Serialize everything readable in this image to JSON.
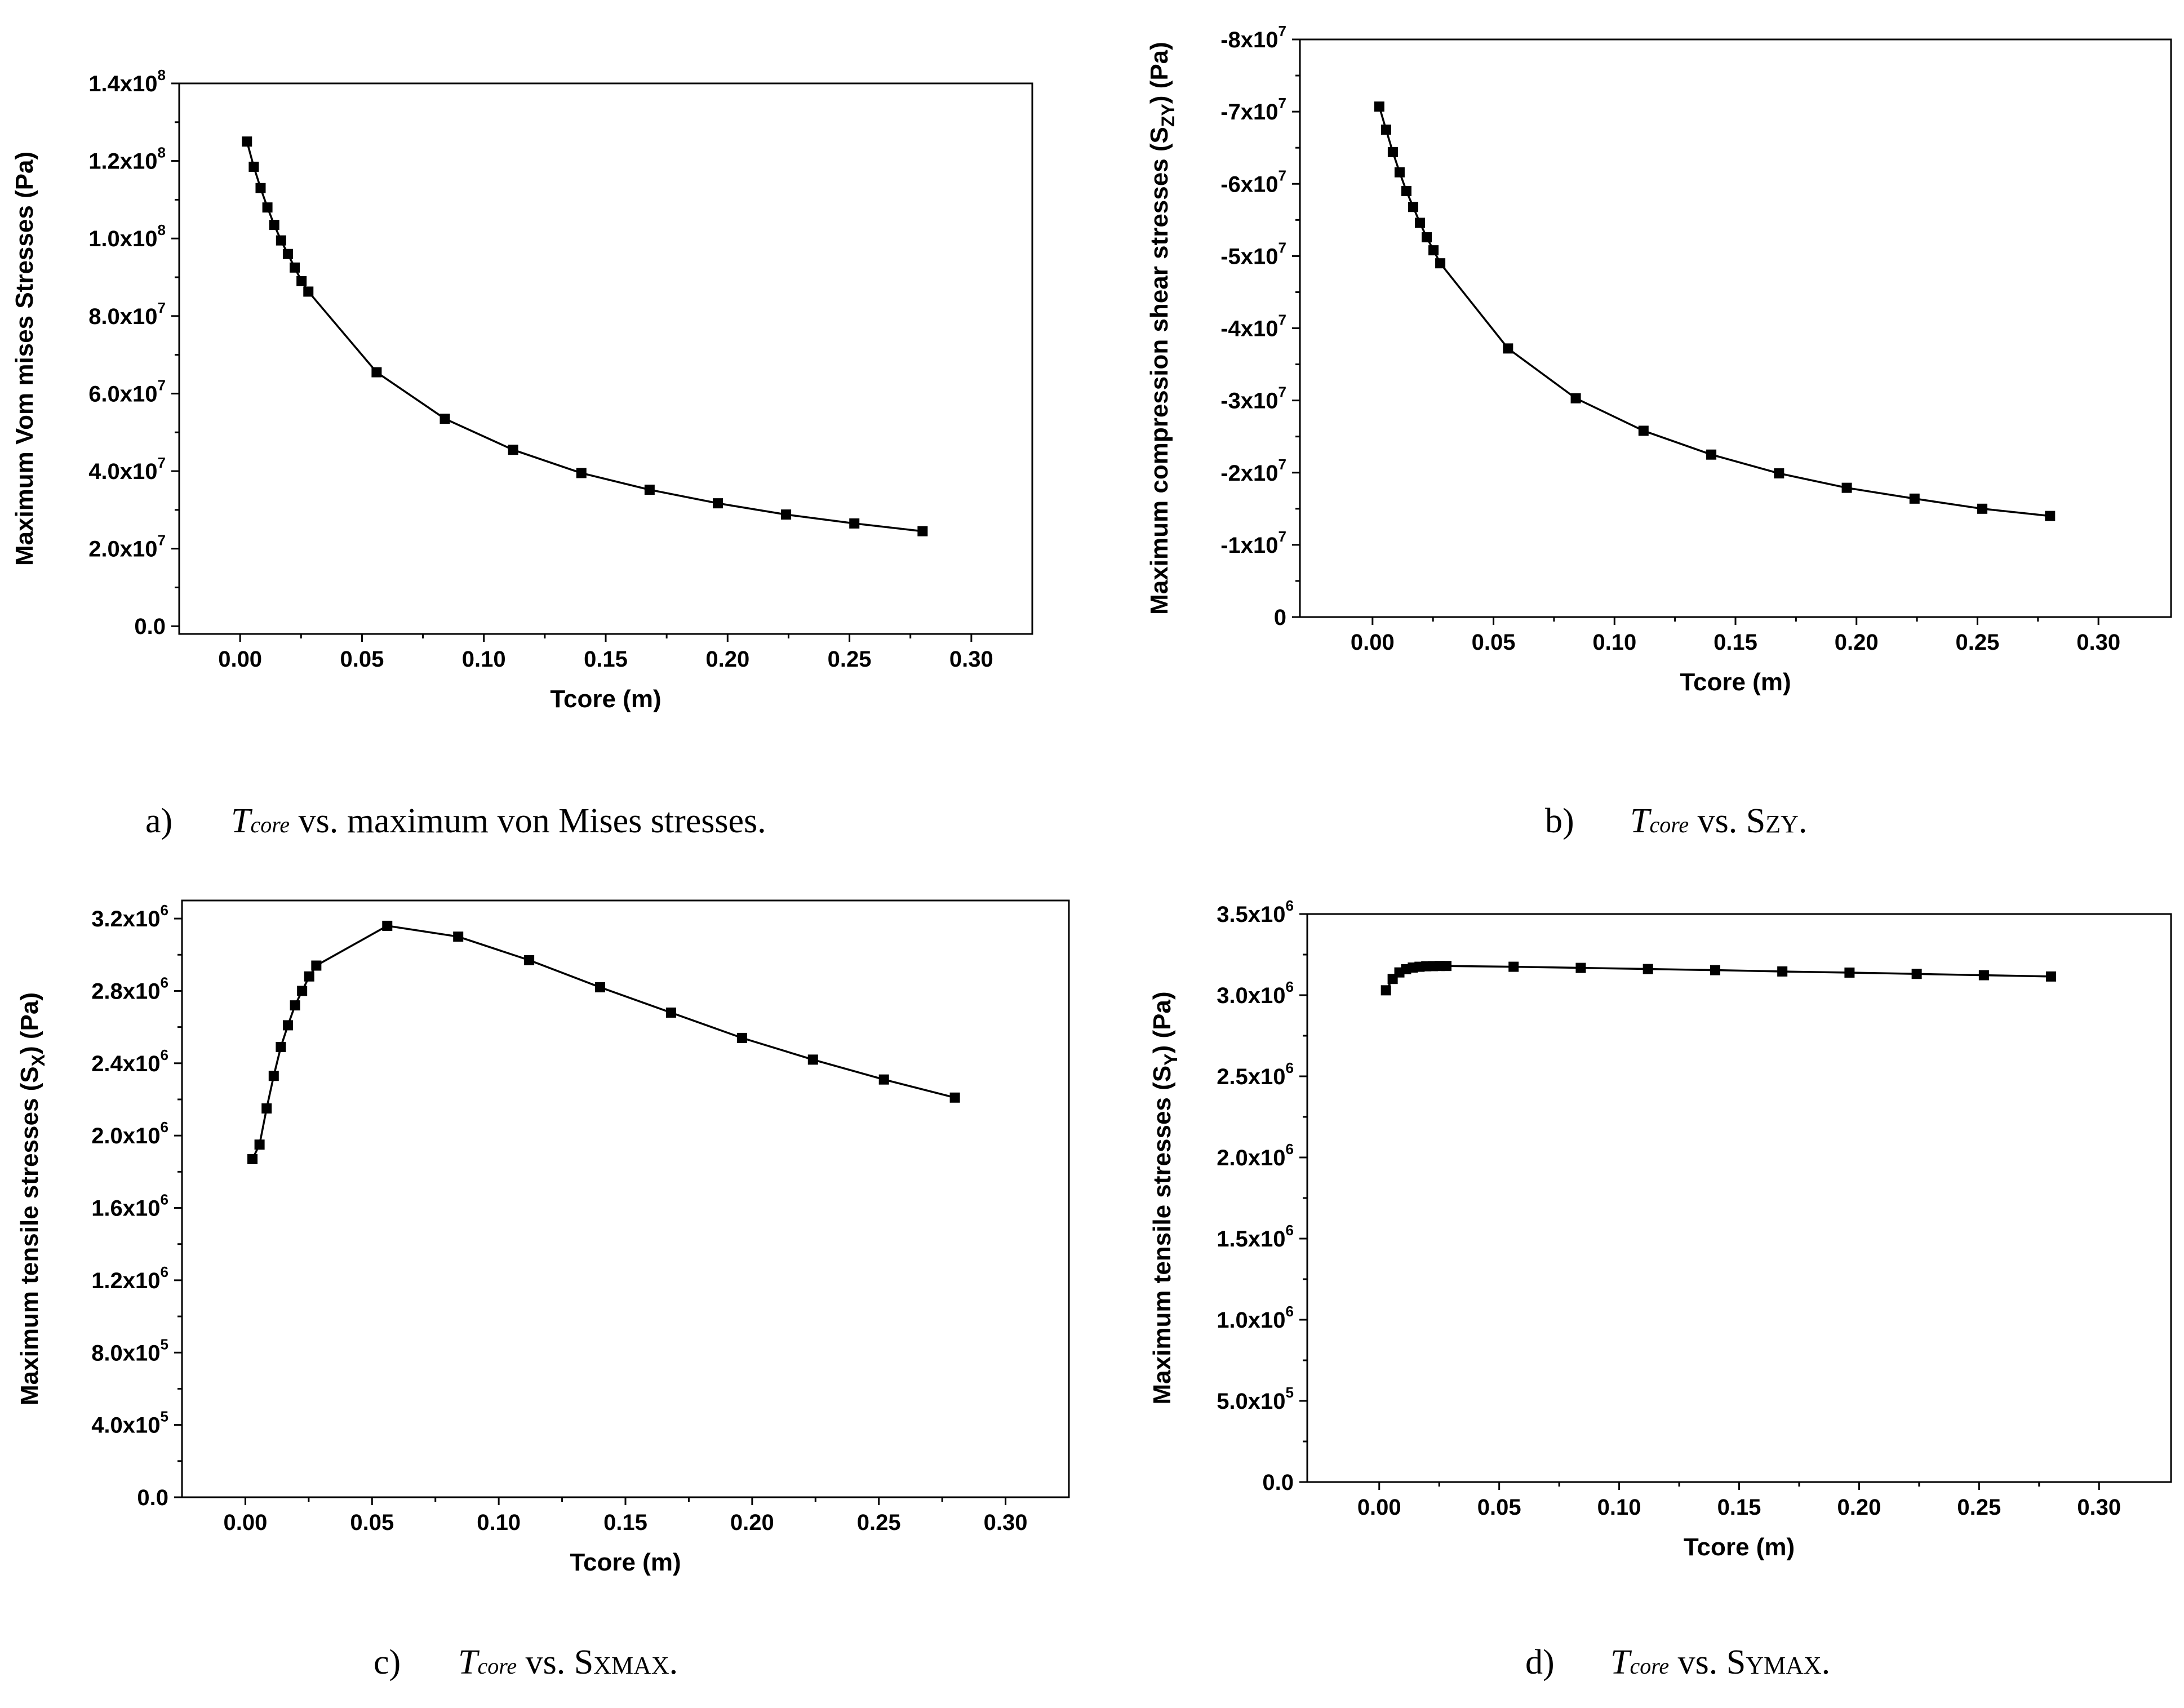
{
  "chart_data": [
    {
      "id": "a",
      "type": "line",
      "xlabel": "Tcore (m)",
      "ylabel": "Maximum Vom mises Stresses (Pa)",
      "xlim": [
        -0.025,
        0.325
      ],
      "ylim": [
        -2000000.0,
        140000000.0
      ],
      "xticks": [
        0.0,
        0.05,
        0.1,
        0.15,
        0.2,
        0.25,
        0.3
      ],
      "xtick_labels": [
        "0.00",
        "0.05",
        "0.10",
        "0.15",
        "0.20",
        "0.25",
        "0.30"
      ],
      "yticks": [
        0,
        20000000.0,
        40000000.0,
        60000000.0,
        80000000.0,
        100000000.0,
        120000000.0,
        140000000.0
      ],
      "ytick_labels": [
        {
          "m": "0.0",
          "e": ""
        },
        {
          "m": "2.0x10",
          "e": "7"
        },
        {
          "m": "4.0x10",
          "e": "7"
        },
        {
          "m": "6.0x10",
          "e": "7"
        },
        {
          "m": "8.0x10",
          "e": "7"
        },
        {
          "m": "1.0x10",
          "e": "8"
        },
        {
          "m": "1.2x10",
          "e": "8"
        },
        {
          "m": "1.4x10",
          "e": "8"
        }
      ],
      "x": [
        0.0028,
        0.0056,
        0.0084,
        0.0112,
        0.014,
        0.0168,
        0.0196,
        0.0224,
        0.0252,
        0.028,
        0.056,
        0.084,
        0.112,
        0.14,
        0.168,
        0.196,
        0.224,
        0.252,
        0.28
      ],
      "y": [
        125000000,
        118500000,
        113000000,
        108000000,
        103500000,
        99500000,
        96000000,
        92500000,
        89000000,
        86300000,
        65500000,
        53500000,
        45500000,
        39500000,
        35200000,
        31700000,
        28800000,
        26500000,
        24500000
      ],
      "caption": {
        "label": "a)",
        "subject": "T",
        "subject_sub": "core",
        "text": " vs. maximum von Mises stresses."
      }
    },
    {
      "id": "b",
      "type": "line",
      "xlabel": "Tcore (m)",
      "ylabel": "Maximum compression shear stresses (S",
      "ylabel_sub": "ZY",
      "ylabel_end": ") (Pa)",
      "xlim": [
        -0.03,
        0.33
      ],
      "ylim": [
        0,
        -80000000.0
      ],
      "xticks": [
        0.0,
        0.05,
        0.1,
        0.15,
        0.2,
        0.25,
        0.3
      ],
      "xtick_labels": [
        "0.00",
        "0.05",
        "0.10",
        "0.15",
        "0.20",
        "0.25",
        "0.30"
      ],
      "yticks": [
        0,
        -10000000.0,
        -20000000.0,
        -30000000.0,
        -40000000.0,
        -50000000.0,
        -60000000.0,
        -70000000.0,
        -80000000.0
      ],
      "ytick_labels": [
        {
          "m": "0",
          "e": ""
        },
        {
          "m": "-1x10",
          "e": "7"
        },
        {
          "m": "-2x10",
          "e": "7"
        },
        {
          "m": "-3x10",
          "e": "7"
        },
        {
          "m": "-4x10",
          "e": "7"
        },
        {
          "m": "-5x10",
          "e": "7"
        },
        {
          "m": "-6x10",
          "e": "7"
        },
        {
          "m": "-7x10",
          "e": "7"
        },
        {
          "m": "-8x10",
          "e": "7"
        }
      ],
      "x": [
        0.0028,
        0.0056,
        0.0084,
        0.0112,
        0.014,
        0.0168,
        0.0196,
        0.0224,
        0.0252,
        0.028,
        0.056,
        0.084,
        0.112,
        0.14,
        0.168,
        0.196,
        0.224,
        0.252,
        0.28
      ],
      "y": [
        -70700000,
        -67500000,
        -64400000,
        -61600000,
        -59000000,
        -56800000,
        -54600000,
        -52600000,
        -50800000,
        -49000000,
        -37200000,
        -30300000,
        -25800000,
        -22500000,
        -19900000,
        -17900000,
        -16400000,
        -15000000,
        -14000000
      ],
      "caption": {
        "label": "b)",
        "subject": "T",
        "subject_sub": "core",
        "text": " vs. S",
        "text_small": "ZY",
        "text_end": "."
      }
    },
    {
      "id": "c",
      "type": "line",
      "xlabel": "Tcore (m)",
      "ylabel": "Maximum tensile stresses (S",
      "ylabel_sub": "X",
      "ylabel_end": ") (Pa)",
      "xlim": [
        -0.025,
        0.325
      ],
      "ylim": [
        0,
        3300000.0
      ],
      "xticks": [
        0.0,
        0.05,
        0.1,
        0.15,
        0.2,
        0.25,
        0.3
      ],
      "xtick_labels": [
        "0.00",
        "0.05",
        "0.10",
        "0.15",
        "0.20",
        "0.25",
        "0.30"
      ],
      "yticks": [
        0,
        400000.0,
        800000.0,
        1200000.0,
        1600000.0,
        2000000.0,
        2400000.0,
        2800000.0,
        3200000.0
      ],
      "ytick_labels": [
        {
          "m": "0.0",
          "e": ""
        },
        {
          "m": "4.0x10",
          "e": "5"
        },
        {
          "m": "8.0x10",
          "e": "5"
        },
        {
          "m": "1.2x10",
          "e": "6"
        },
        {
          "m": "1.6x10",
          "e": "6"
        },
        {
          "m": "2.0x10",
          "e": "6"
        },
        {
          "m": "2.4x10",
          "e": "6"
        },
        {
          "m": "2.8x10",
          "e": "6"
        },
        {
          "m": "3.2x10",
          "e": "6"
        }
      ],
      "x": [
        0.0028,
        0.0056,
        0.0084,
        0.0112,
        0.014,
        0.0168,
        0.0196,
        0.0224,
        0.0252,
        0.028,
        0.056,
        0.084,
        0.112,
        0.14,
        0.168,
        0.196,
        0.224,
        0.252,
        0.28
      ],
      "y": [
        1870000,
        1950000,
        2150000,
        2330000,
        2490000,
        2610000,
        2720000,
        2800000,
        2880000,
        2940000,
        3160000,
        3100000,
        2970000,
        2820000,
        2680000,
        2540000,
        2420000,
        2310000,
        2210000
      ],
      "caption": {
        "label": "c)",
        "subject": "T",
        "subject_sub": "core",
        "text": " vs. S",
        "text_small": "XMAX",
        "text_end": "."
      }
    },
    {
      "id": "d",
      "type": "line",
      "xlabel": "Tcore (m)",
      "ylabel": "Maximum tensile stresses (S",
      "ylabel_sub": "Y",
      "ylabel_end": ") (Pa)",
      "xlim": [
        -0.03,
        0.33
      ],
      "ylim": [
        0,
        3500000.0
      ],
      "xticks": [
        0.0,
        0.05,
        0.1,
        0.15,
        0.2,
        0.25,
        0.3
      ],
      "xtick_labels": [
        "0.00",
        "0.05",
        "0.10",
        "0.15",
        "0.20",
        "0.25",
        "0.30"
      ],
      "yticks": [
        0,
        500000.0,
        1000000.0,
        1500000.0,
        2000000.0,
        2500000.0,
        3000000.0,
        3500000.0
      ],
      "ytick_labels": [
        {
          "m": "0.0",
          "e": ""
        },
        {
          "m": "5.0x10",
          "e": "5"
        },
        {
          "m": "1.0x10",
          "e": "6"
        },
        {
          "m": "1.5x10",
          "e": "6"
        },
        {
          "m": "2.0x10",
          "e": "6"
        },
        {
          "m": "2.5x10",
          "e": "6"
        },
        {
          "m": "3.0x10",
          "e": "6"
        },
        {
          "m": "3.5x10",
          "e": "6"
        }
      ],
      "x": [
        0.0028,
        0.0056,
        0.0084,
        0.0112,
        0.014,
        0.0168,
        0.0196,
        0.0224,
        0.0252,
        0.028,
        0.056,
        0.084,
        0.112,
        0.14,
        0.168,
        0.196,
        0.224,
        0.252,
        0.28
      ],
      "y": [
        3030000,
        3100000,
        3140000,
        3160000,
        3170000,
        3175000,
        3178000,
        3179000,
        3180000,
        3180000,
        3175000,
        3168000,
        3161000,
        3154000,
        3146000,
        3139000,
        3131000,
        3123000,
        3115000
      ],
      "caption": {
        "label": "d)",
        "subject": "T",
        "subject_sub": "core",
        "text": " vs. S",
        "text_small": "YMAX",
        "text_end": "."
      }
    }
  ]
}
